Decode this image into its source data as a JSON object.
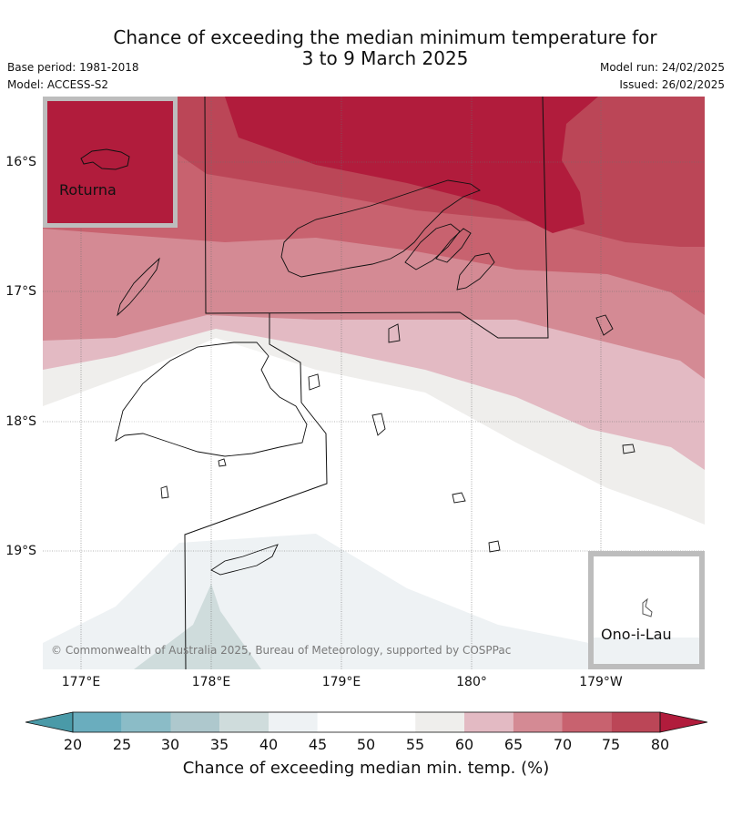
{
  "header": {
    "title_line1": "Chance of exceeding the median minimum temperature for",
    "title_line2": "3 to 9 March 2025",
    "base_period": "Base period: 1981-2018",
    "model": "Model: ACCESS-S2",
    "model_run": "Model run: 24/02/2025",
    "issued": "Issued: 26/02/2025"
  },
  "map": {
    "latitude_ticks": [
      "16°S",
      "17°S",
      "18°S",
      "19°S"
    ],
    "longitude_ticks": [
      "177°E",
      "178°E",
      "179°E",
      "180°",
      "179°W"
    ],
    "insets": [
      {
        "name": "Roturna",
        "category_color": "#b11c3c"
      },
      {
        "name": "Ono-i-Lau",
        "category_color": "#ffffff"
      }
    ],
    "copyright": "© Commonwealth of Australia 2025, Bureau of Meteorology, supported by COSPPac"
  },
  "colorbar": {
    "label": "Chance of exceeding median min. temp. (%)",
    "ticks": [
      "20",
      "25",
      "30",
      "35",
      "40",
      "45",
      "50",
      "55",
      "60",
      "65",
      "70",
      "75",
      "80"
    ],
    "colors": [
      "#4a9aa8",
      "#6aadbe",
      "#8bbcc7",
      "#aec8cd",
      "#cfdcdc",
      "#eef2f4",
      "#ffffff",
      "#ffffff",
      "#efeeec",
      "#e3bac3",
      "#d48a94",
      "#c8626f",
      "#bb4657",
      "#b11c3c"
    ]
  }
}
